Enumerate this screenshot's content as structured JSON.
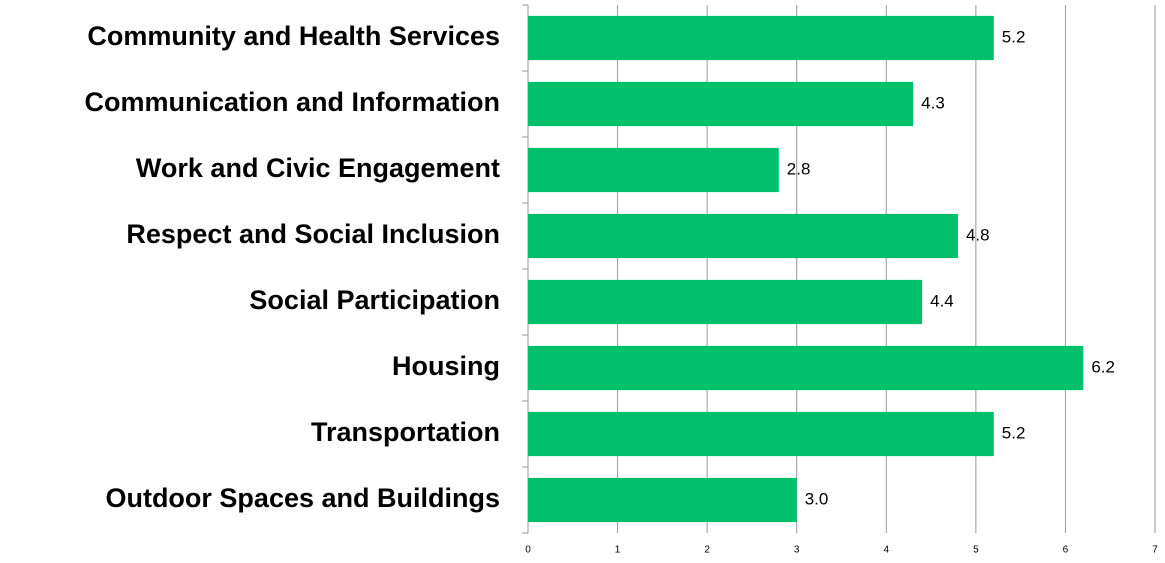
{
  "chart_data": {
    "type": "barh",
    "categories": [
      "Community and Health Services",
      "Communication and Information",
      "Work and Civic Engagement",
      "Respect and Social Inclusion",
      "Social Participation",
      "Housing",
      "Transportation",
      "Outdoor Spaces and Buildings"
    ],
    "values": [
      5.2,
      4.3,
      2.8,
      4.8,
      4.4,
      6.2,
      5.2,
      3.0
    ],
    "value_labels": [
      "5.2",
      "4.3",
      "2.8",
      "4.8",
      "4.4",
      "6.2",
      "5.2",
      "3.0"
    ],
    "color": "#00c06b",
    "xlim": [
      0,
      7
    ],
    "xticks": [
      0,
      1,
      2,
      3,
      4,
      5,
      6,
      7
    ],
    "grid": true
  }
}
